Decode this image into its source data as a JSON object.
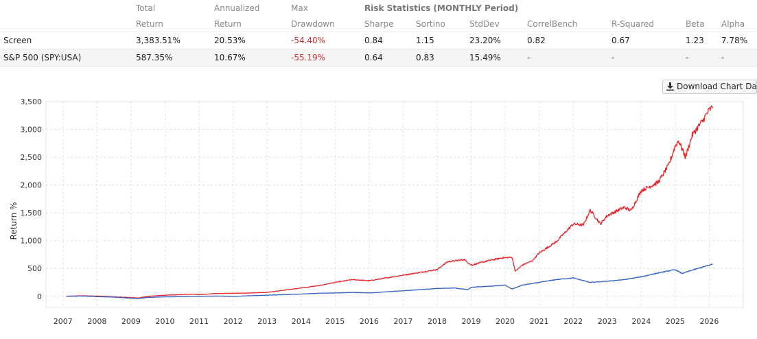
{
  "table": {
    "headers_top": [
      "Total",
      "Annualized",
      "Max",
      "Risk Statistics (MONTHLY Period)"
    ],
    "headers_bottom": [
      "Return",
      "Return",
      "Drawdown",
      "Sharpe",
      "Sortino",
      "StdDev",
      "CorrelBench",
      "R-Squared",
      "Beta",
      "Alpha"
    ],
    "rows": [
      {
        "name": "Screen",
        "total": "3,383.51%",
        "annualized": "20.53%",
        "drawdown": "-54.40%",
        "sharpe": "0.84",
        "sortino": "1.15",
        "stddev": "23.20%",
        "correl": "0.82",
        "rsq": "0.67",
        "beta": "1.23",
        "alpha": "7.78%"
      },
      {
        "name": "S&P 500 (SPY:USA)",
        "total": "587.35%",
        "annualized": "10.67%",
        "drawdown": "-55.19%",
        "sharpe": "0.64",
        "sortino": "0.83",
        "stddev": "15.49%",
        "correl": "-",
        "rsq": "-",
        "beta": "-",
        "alpha": "-"
      }
    ]
  },
  "download_label": "Download Chart Data",
  "chart_data": {
    "type": "line",
    "ylabel": "Return %",
    "ylim": [
      -200,
      3500
    ],
    "xlim": [
      2006.5,
      2027.0
    ],
    "yticks": [
      0,
      500,
      1000,
      1500,
      2000,
      2500,
      3000,
      3500
    ],
    "ytick_labels": [
      "0",
      "500",
      "1,000",
      "1,500",
      "2,000",
      "2,500",
      "3,000",
      "3,500"
    ],
    "xticks": [
      2007,
      2008,
      2009,
      2010,
      2011,
      2012,
      2013,
      2014,
      2015,
      2016,
      2017,
      2018,
      2019,
      2020,
      2021,
      2022,
      2023,
      2024,
      2025,
      2026
    ],
    "xtick_labels": [
      "2007",
      "2008",
      "2009",
      "2010",
      "2011",
      "2012",
      "2013",
      "2014",
      "2015",
      "2016",
      "2017",
      "2018",
      "2019",
      "2020",
      "2021",
      "2022",
      "2023",
      "2024",
      "2025",
      "2026"
    ],
    "series": [
      {
        "name": "Screen",
        "color": "#e8262b",
        "points": [
          [
            2007.1,
            0
          ],
          [
            2007.5,
            10
          ],
          [
            2008.0,
            5
          ],
          [
            2008.5,
            -10
          ],
          [
            2008.9,
            -20
          ],
          [
            2009.2,
            -30
          ],
          [
            2009.5,
            0
          ],
          [
            2010.0,
            20
          ],
          [
            2010.5,
            30
          ],
          [
            2010.8,
            40
          ],
          [
            2011.0,
            30
          ],
          [
            2011.5,
            50
          ],
          [
            2012.0,
            55
          ],
          [
            2012.5,
            60
          ],
          [
            2013.0,
            70
          ],
          [
            2013.5,
            110
          ],
          [
            2014.0,
            150
          ],
          [
            2014.5,
            190
          ],
          [
            2015.0,
            250
          ],
          [
            2015.5,
            300
          ],
          [
            2016.0,
            280
          ],
          [
            2016.5,
            330
          ],
          [
            2017.0,
            380
          ],
          [
            2017.5,
            430
          ],
          [
            2018.0,
            480
          ],
          [
            2018.3,
            620
          ],
          [
            2018.8,
            660
          ],
          [
            2019.0,
            560
          ],
          [
            2019.5,
            640
          ],
          [
            2019.9,
            690
          ],
          [
            2020.2,
            700
          ],
          [
            2020.3,
            450
          ],
          [
            2020.5,
            560
          ],
          [
            2020.8,
            640
          ],
          [
            2021.0,
            780
          ],
          [
            2021.5,
            980
          ],
          [
            2022.0,
            1300
          ],
          [
            2022.3,
            1280
          ],
          [
            2022.5,
            1550
          ],
          [
            2022.8,
            1300
          ],
          [
            2023.0,
            1450
          ],
          [
            2023.5,
            1600
          ],
          [
            2023.7,
            1540
          ],
          [
            2024.0,
            1900
          ],
          [
            2024.5,
            2050
          ],
          [
            2024.8,
            2350
          ],
          [
            2025.0,
            2700
          ],
          [
            2025.1,
            2800
          ],
          [
            2025.3,
            2500
          ],
          [
            2025.5,
            2900
          ],
          [
            2025.8,
            3150
          ],
          [
            2026.0,
            3350
          ],
          [
            2026.1,
            3400
          ]
        ]
      },
      {
        "name": "S&P 500 (SPY:USA)",
        "color": "#3461c1",
        "points": [
          [
            2007.1,
            0
          ],
          [
            2007.5,
            5
          ],
          [
            2008.0,
            -5
          ],
          [
            2008.5,
            -15
          ],
          [
            2008.9,
            -30
          ],
          [
            2009.2,
            -40
          ],
          [
            2009.5,
            -20
          ],
          [
            2010.0,
            -10
          ],
          [
            2010.5,
            -5
          ],
          [
            2011.0,
            0
          ],
          [
            2011.5,
            5
          ],
          [
            2012.0,
            0
          ],
          [
            2012.5,
            10
          ],
          [
            2013.0,
            20
          ],
          [
            2013.5,
            30
          ],
          [
            2014.0,
            40
          ],
          [
            2014.5,
            55
          ],
          [
            2015.0,
            60
          ],
          [
            2015.5,
            70
          ],
          [
            2016.0,
            60
          ],
          [
            2016.5,
            80
          ],
          [
            2017.0,
            100
          ],
          [
            2017.5,
            120
          ],
          [
            2018.0,
            140
          ],
          [
            2018.5,
            150
          ],
          [
            2018.9,
            120
          ],
          [
            2019.0,
            160
          ],
          [
            2019.5,
            180
          ],
          [
            2020.0,
            200
          ],
          [
            2020.2,
            130
          ],
          [
            2020.5,
            200
          ],
          [
            2021.0,
            250
          ],
          [
            2021.5,
            300
          ],
          [
            2022.0,
            330
          ],
          [
            2022.5,
            250
          ],
          [
            2022.8,
            260
          ],
          [
            2023.0,
            270
          ],
          [
            2023.5,
            300
          ],
          [
            2024.0,
            350
          ],
          [
            2024.5,
            420
          ],
          [
            2025.0,
            480
          ],
          [
            2025.2,
            410
          ],
          [
            2025.5,
            470
          ],
          [
            2026.0,
            560
          ],
          [
            2026.1,
            580
          ]
        ]
      }
    ]
  }
}
